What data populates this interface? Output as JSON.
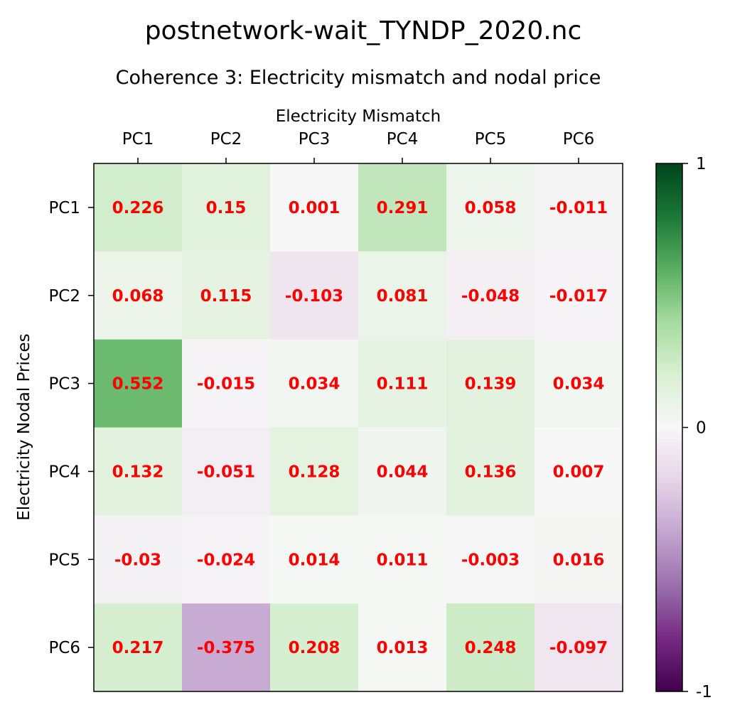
{
  "chart_data": {
    "type": "heatmap",
    "suptitle": "postnetwork-wait_TYNDP_2020.nc",
    "title": "Coherence 3: Electricity mismatch and nodal price",
    "xlabel": "Electricity Mismatch",
    "ylabel": "Electricity Nodal Prices",
    "x_categories": [
      "PC1",
      "PC2",
      "PC3",
      "PC4",
      "PC5",
      "PC6"
    ],
    "y_categories": [
      "PC1",
      "PC2",
      "PC3",
      "PC4",
      "PC5",
      "PC6"
    ],
    "values": [
      [
        0.226,
        0.15,
        0.001,
        0.291,
        0.058,
        -0.011
      ],
      [
        0.068,
        0.115,
        -0.103,
        0.081,
        -0.048,
        -0.017
      ],
      [
        0.552,
        -0.015,
        0.034,
        0.111,
        0.139,
        0.034
      ],
      [
        0.132,
        -0.051,
        0.128,
        0.044,
        0.136,
        0.007
      ],
      [
        -0.03,
        -0.024,
        0.014,
        0.011,
        -0.003,
        0.016
      ],
      [
        0.217,
        -0.375,
        0.208,
        0.013,
        0.248,
        -0.097
      ]
    ],
    "value_labels": [
      [
        "0.226",
        "0.15",
        "0.001",
        "0.291",
        "0.058",
        "-0.011"
      ],
      [
        "0.068",
        "0.115",
        "-0.103",
        "0.081",
        "-0.048",
        "-0.017"
      ],
      [
        "0.552",
        "-0.015",
        "0.034",
        "0.111",
        "0.139",
        "0.034"
      ],
      [
        "0.132",
        "-0.051",
        "0.128",
        "0.044",
        "0.136",
        "0.007"
      ],
      [
        "-0.03",
        "-0.024",
        "0.014",
        "0.011",
        "-0.003",
        "0.016"
      ],
      [
        "0.217",
        "-0.375",
        "0.208",
        "0.013",
        "0.248",
        "-0.097"
      ]
    ],
    "colormap": "PRGn",
    "vlim": [
      -1,
      1
    ],
    "colorbar": {
      "ticks": [
        "1",
        "0",
        "-1"
      ]
    },
    "annotation_color": "#ff0000"
  }
}
